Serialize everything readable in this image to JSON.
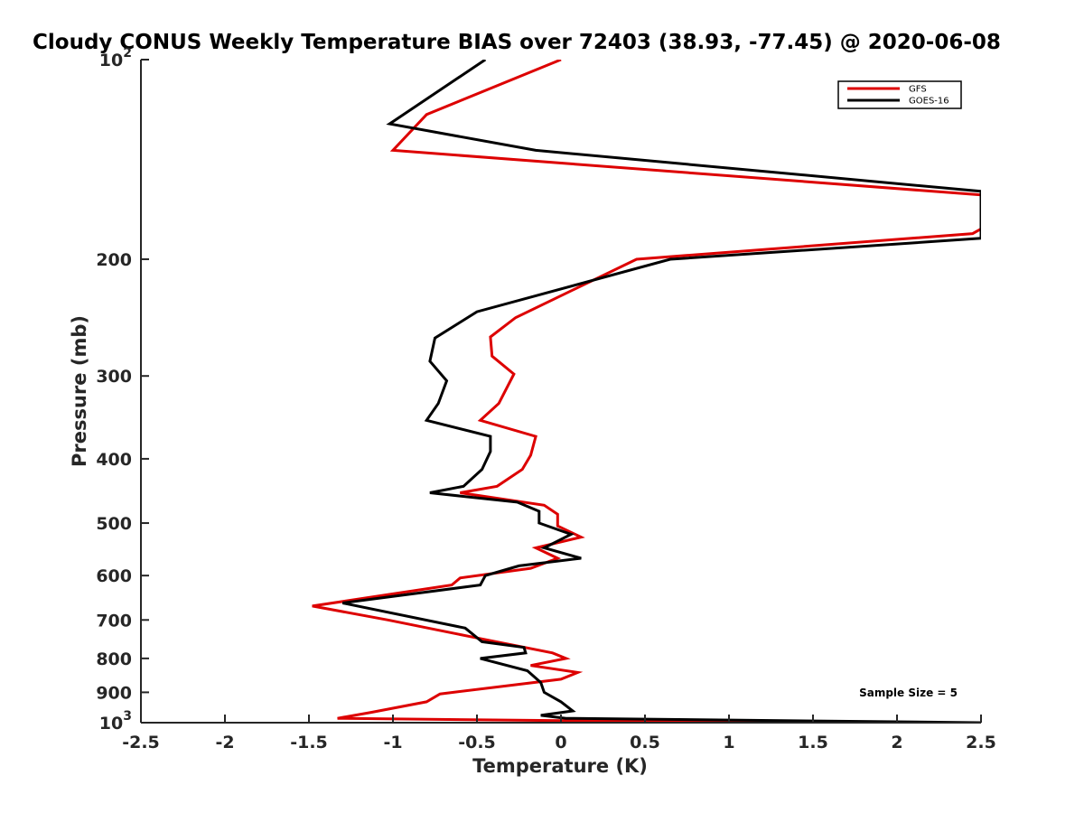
{
  "chart_data": {
    "type": "line",
    "title": "Cloudy CONUS Weekly Temperature BIAS over 72403 (38.93, -77.45) @ 2020-06-08",
    "xlabel": "Temperature (K)",
    "ylabel": "Pressure (mb)",
    "xlim": [
      -2.5,
      2.5
    ],
    "ylim": [
      100,
      1000
    ],
    "yscale": "log",
    "y_reversed": true,
    "xticks": [
      -2.5,
      -2,
      -1.5,
      -1,
      -0.5,
      0,
      0.5,
      1,
      1.5,
      2,
      2.5
    ],
    "xtick_labels": [
      "-2.5",
      "-2",
      "-1.5",
      "-1",
      "-0.5",
      "0",
      "0.5",
      "1",
      "1.5",
      "2",
      "2.5"
    ],
    "yticks": [
      {
        "value": 100,
        "base": "10",
        "exp": "2"
      },
      {
        "value": 200,
        "base": "200",
        "exp": ""
      },
      {
        "value": 300,
        "base": "300",
        "exp": ""
      },
      {
        "value": 400,
        "base": "400",
        "exp": ""
      },
      {
        "value": 500,
        "base": "500",
        "exp": ""
      },
      {
        "value": 600,
        "base": "600",
        "exp": ""
      },
      {
        "value": 700,
        "base": "700",
        "exp": ""
      },
      {
        "value": 800,
        "base": "800",
        "exp": ""
      },
      {
        "value": 900,
        "base": "900",
        "exp": ""
      },
      {
        "value": 1000,
        "base": "10",
        "exp": "3"
      }
    ],
    "grid": false,
    "legend_position": "top-right",
    "annotation": "Sample Size = 5",
    "series": [
      {
        "name": "GFS",
        "color": "#dd0000",
        "x": [
          0.0,
          -0.8,
          -1.0,
          2.5,
          2.5,
          2.45,
          0.45,
          -0.27,
          -0.42,
          -0.41,
          -0.28,
          -0.37,
          -0.48,
          -0.15,
          -0.18,
          -0.23,
          -0.38,
          -0.6,
          -0.1,
          -0.02,
          -0.02,
          0.12,
          -0.15,
          -0.02,
          -0.18,
          -0.6,
          -0.65,
          -1.48,
          -1.03,
          -0.5,
          -0.05,
          0.03,
          -0.18,
          0.1,
          0.0,
          -0.72,
          -0.8,
          -1.13,
          -1.33,
          1.2
        ],
        "y": [
          100,
          121,
          137,
          160,
          180,
          183,
          200,
          245,
          262,
          280,
          298,
          330,
          350,
          370,
          395,
          415,
          440,
          450,
          470,
          485,
          505,
          525,
          545,
          565,
          585,
          605,
          620,
          667,
          700,
          745,
          785,
          800,
          820,
          840,
          860,
          905,
          930,
          965,
          985,
          1000
        ]
      },
      {
        "name": "GOES-16",
        "color": "#000000",
        "x": [
          -0.45,
          -1.02,
          -0.15,
          2.5,
          2.5,
          0.65,
          -0.5,
          -0.75,
          -0.78,
          -0.68,
          -0.73,
          -0.8,
          -0.42,
          -0.42,
          -0.47,
          -0.58,
          -0.78,
          -0.26,
          -0.13,
          -0.13,
          0.06,
          -0.1,
          0.12,
          -0.25,
          -0.45,
          -0.48,
          -1.3,
          -0.57,
          -0.47,
          -0.22,
          -0.21,
          -0.48,
          -0.2,
          -0.12,
          -0.1,
          0.0,
          0.07,
          -0.12,
          0.03,
          2.5
        ],
        "y": [
          100,
          125,
          137,
          158,
          186,
          200,
          240,
          263,
          285,
          305,
          330,
          350,
          370,
          390,
          415,
          440,
          450,
          465,
          480,
          500,
          520,
          545,
          565,
          580,
          600,
          620,
          660,
          720,
          755,
          770,
          785,
          800,
          835,
          870,
          900,
          930,
          960,
          975,
          985,
          1000
        ]
      }
    ]
  }
}
